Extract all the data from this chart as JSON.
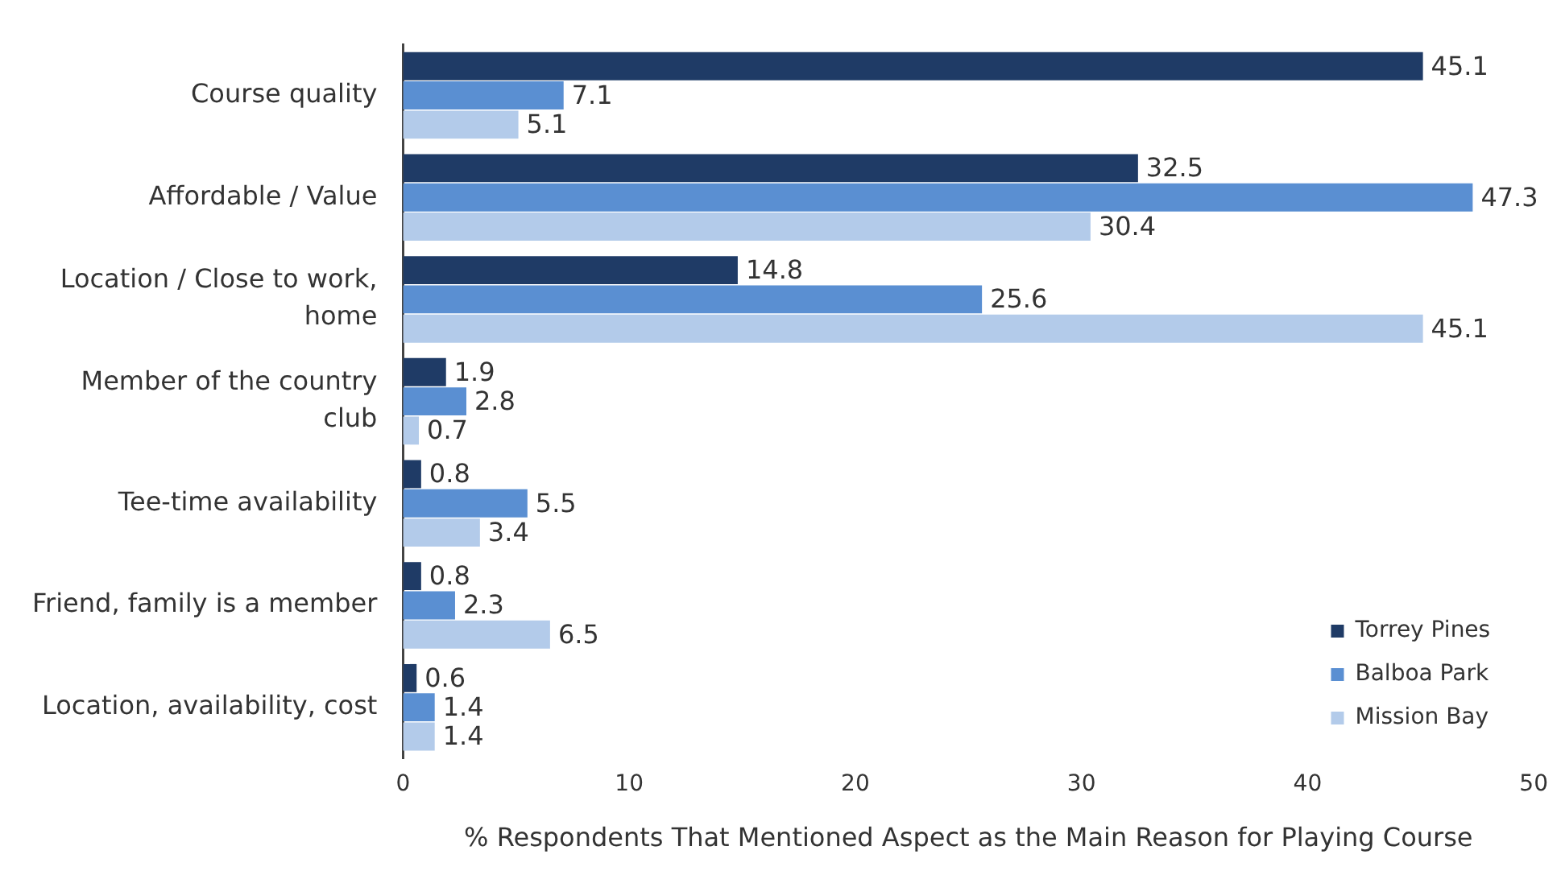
{
  "chart_data": {
    "type": "bar",
    "orientation": "horizontal",
    "xlabel": "% Respondents That Mentioned Aspect as the Main Reason for Playing Course",
    "categories": [
      "Course quality",
      "Affordable / Value",
      "Location / Close to work, home",
      "Member of the country club",
      "Tee-time availability",
      "Friend, family is a member",
      "Location, availability, cost"
    ],
    "series": [
      {
        "name": "Torrey Pines",
        "color": "#1f3b66",
        "values": [
          45.1,
          32.5,
          14.8,
          1.9,
          0.8,
          0.8,
          0.6
        ]
      },
      {
        "name": "Balboa Park",
        "color": "#5a8fd2",
        "values": [
          7.1,
          47.3,
          25.6,
          2.8,
          5.5,
          2.3,
          1.4
        ]
      },
      {
        "name": "Mission Bay",
        "color": "#b3cbea",
        "values": [
          5.1,
          30.4,
          45.1,
          0.7,
          3.4,
          6.5,
          1.4
        ]
      }
    ],
    "xlim": [
      0,
      50
    ],
    "xticks": [
      0,
      10,
      20,
      30,
      40,
      50
    ],
    "data_labels": true,
    "grid": false,
    "legend": "bottom right"
  }
}
